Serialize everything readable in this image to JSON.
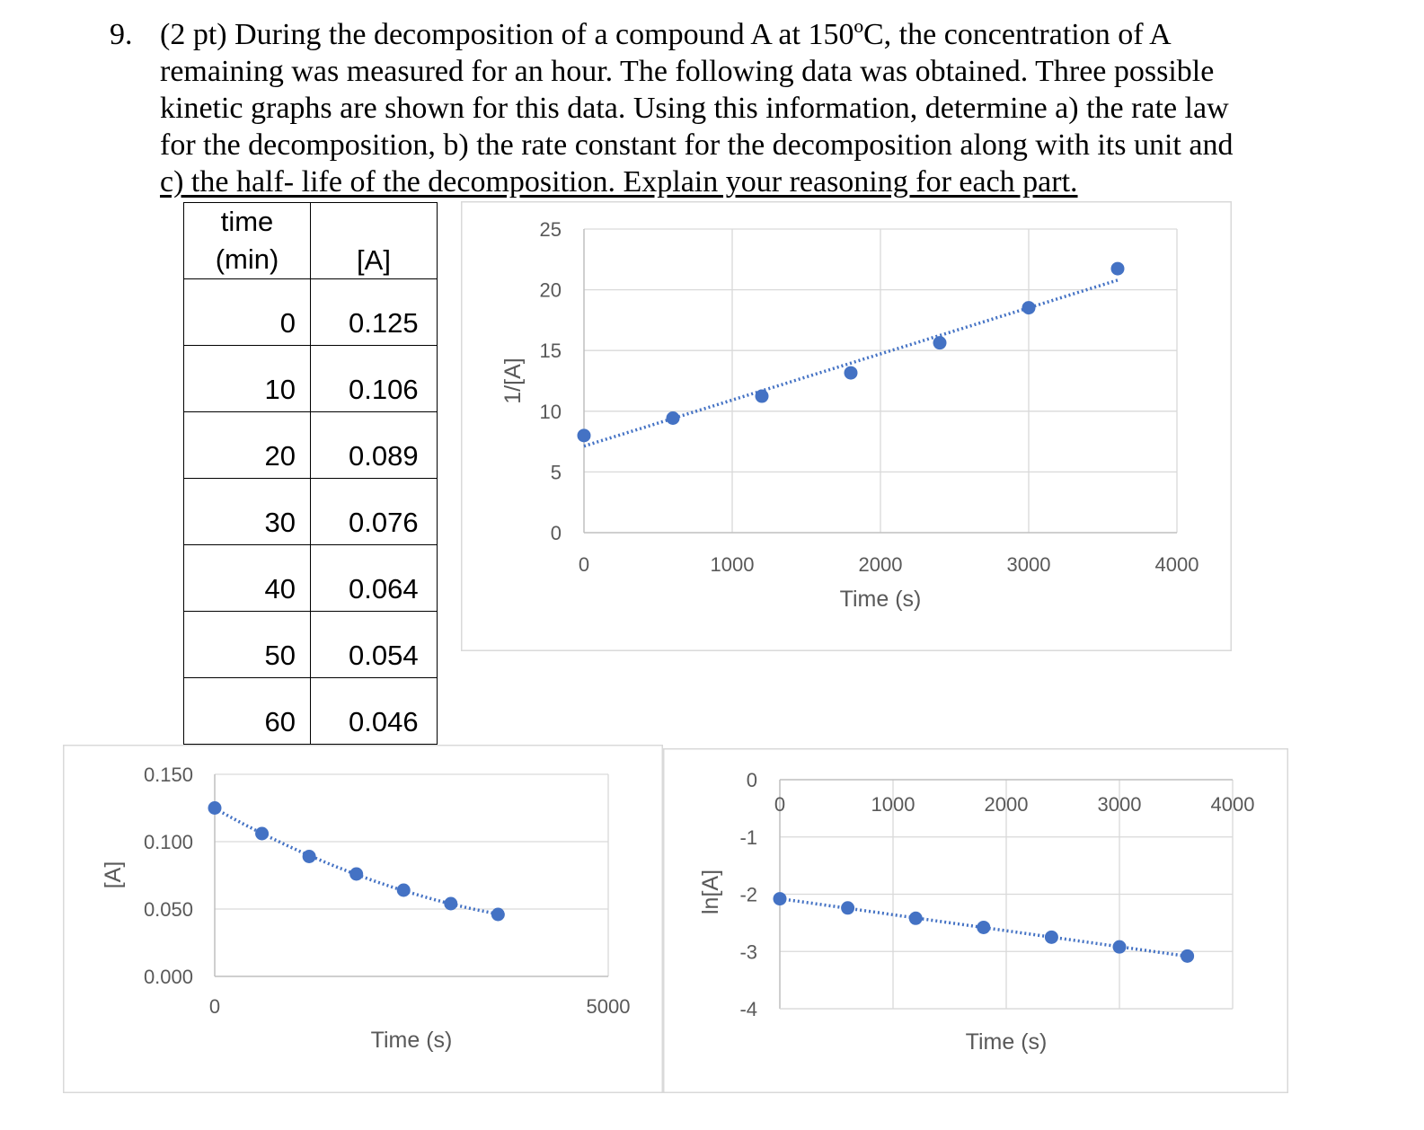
{
  "question": {
    "number": "9.",
    "lines": [
      "(2 pt) During the decomposition of a compound A at 150ºC, the concentration of A",
      "remaining was measured for an hour. The following data was obtained. Three possible",
      "kinetic graphs are shown for this data. Using this information, determine a) the rate law",
      "for the decomposition, b) the rate constant for the decomposition along with its unit and",
      "c) the half- life of the decomposition. Explain your reasoning for each part."
    ]
  },
  "table": {
    "header_time_line1": "time",
    "header_time_line2": "(min)",
    "header_conc": "[A]",
    "rows": [
      {
        "time": "0",
        "conc": "0.125"
      },
      {
        "time": "10",
        "conc": "0.106"
      },
      {
        "time": "20",
        "conc": "0.089"
      },
      {
        "time": "30",
        "conc": "0.076"
      },
      {
        "time": "40",
        "conc": "0.064"
      },
      {
        "time": "50",
        "conc": "0.054"
      },
      {
        "time": "60",
        "conc": "0.046"
      }
    ]
  },
  "chart_data": [
    {
      "id": "inverse",
      "type": "scatter",
      "title": "",
      "xlabel": "Time (s)",
      "ylabel": "1/[A]",
      "xlim": [
        0,
        4000
      ],
      "ylim": [
        0,
        25
      ],
      "xticks": [
        "0",
        "1000",
        "2000",
        "3000",
        "4000"
      ],
      "yticks": [
        "0",
        "5",
        "10",
        "15",
        "20",
        "25"
      ],
      "grid": true,
      "trendline": "linear, dotted",
      "x": [
        0,
        600,
        1200,
        1800,
        2400,
        3000,
        3600
      ],
      "y": [
        8.0,
        9.43,
        11.24,
        13.16,
        15.63,
        18.52,
        21.74
      ],
      "marker_color": "#4472c4"
    },
    {
      "id": "conc",
      "type": "scatter",
      "title": "",
      "xlabel": "Time (s)",
      "ylabel": "[A]",
      "xlim": [
        0,
        5000
      ],
      "ylim": [
        0,
        0.15
      ],
      "xticks": [
        "0",
        "5000"
      ],
      "yticks": [
        "0.000",
        "0.050",
        "0.100",
        "0.150"
      ],
      "grid": true,
      "trendline": "polynomial, dotted",
      "x": [
        0,
        600,
        1200,
        1800,
        2400,
        3000,
        3600
      ],
      "y": [
        0.125,
        0.106,
        0.089,
        0.076,
        0.064,
        0.054,
        0.046
      ],
      "marker_color": "#4472c4"
    },
    {
      "id": "ln",
      "type": "scatter",
      "title": "",
      "xlabel": "Time (s)",
      "ylabel": "ln[A]",
      "xlim": [
        0,
        4000
      ],
      "ylim": [
        -4,
        0
      ],
      "xticks": [
        "0",
        "1000",
        "2000",
        "3000",
        "4000"
      ],
      "yticks": [
        "0",
        "-1",
        "-2",
        "-3",
        "-4"
      ],
      "grid": true,
      "trendline": "linear, dotted",
      "x": [
        0,
        600,
        1200,
        1800,
        2400,
        3000,
        3600
      ],
      "y": [
        -2.08,
        -2.24,
        -2.42,
        -2.58,
        -2.75,
        -2.92,
        -3.08
      ],
      "marker_color": "#4472c4"
    }
  ]
}
